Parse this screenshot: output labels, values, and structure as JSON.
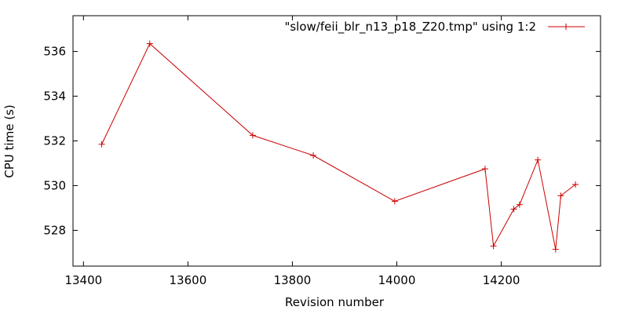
{
  "chart_data": {
    "type": "line",
    "title": "",
    "xlabel": "Revision number",
    "ylabel": "CPU time (s)",
    "xlim": [
      13380,
      14390
    ],
    "ylim": [
      526.4,
      537.6
    ],
    "xticks": [
      13400,
      13600,
      13800,
      14000,
      14200
    ],
    "yticks": [
      528,
      530,
      532,
      534,
      536
    ],
    "grid": false,
    "legend_position": "top-right",
    "series": [
      {
        "name": "\"slow/feii_blr_n13_p18_Z20.tmp\" using 1:2",
        "color": "#cc0000",
        "marker": "plus",
        "x": [
          13435,
          13527,
          13724,
          13840,
          13996,
          14169,
          14185,
          14224,
          14235,
          14270,
          14304,
          14314,
          14342
        ],
        "y": [
          531.85,
          536.35,
          532.25,
          531.35,
          529.3,
          530.75,
          527.3,
          528.95,
          529.15,
          531.15,
          527.15,
          529.55,
          530.05
        ]
      }
    ]
  }
}
